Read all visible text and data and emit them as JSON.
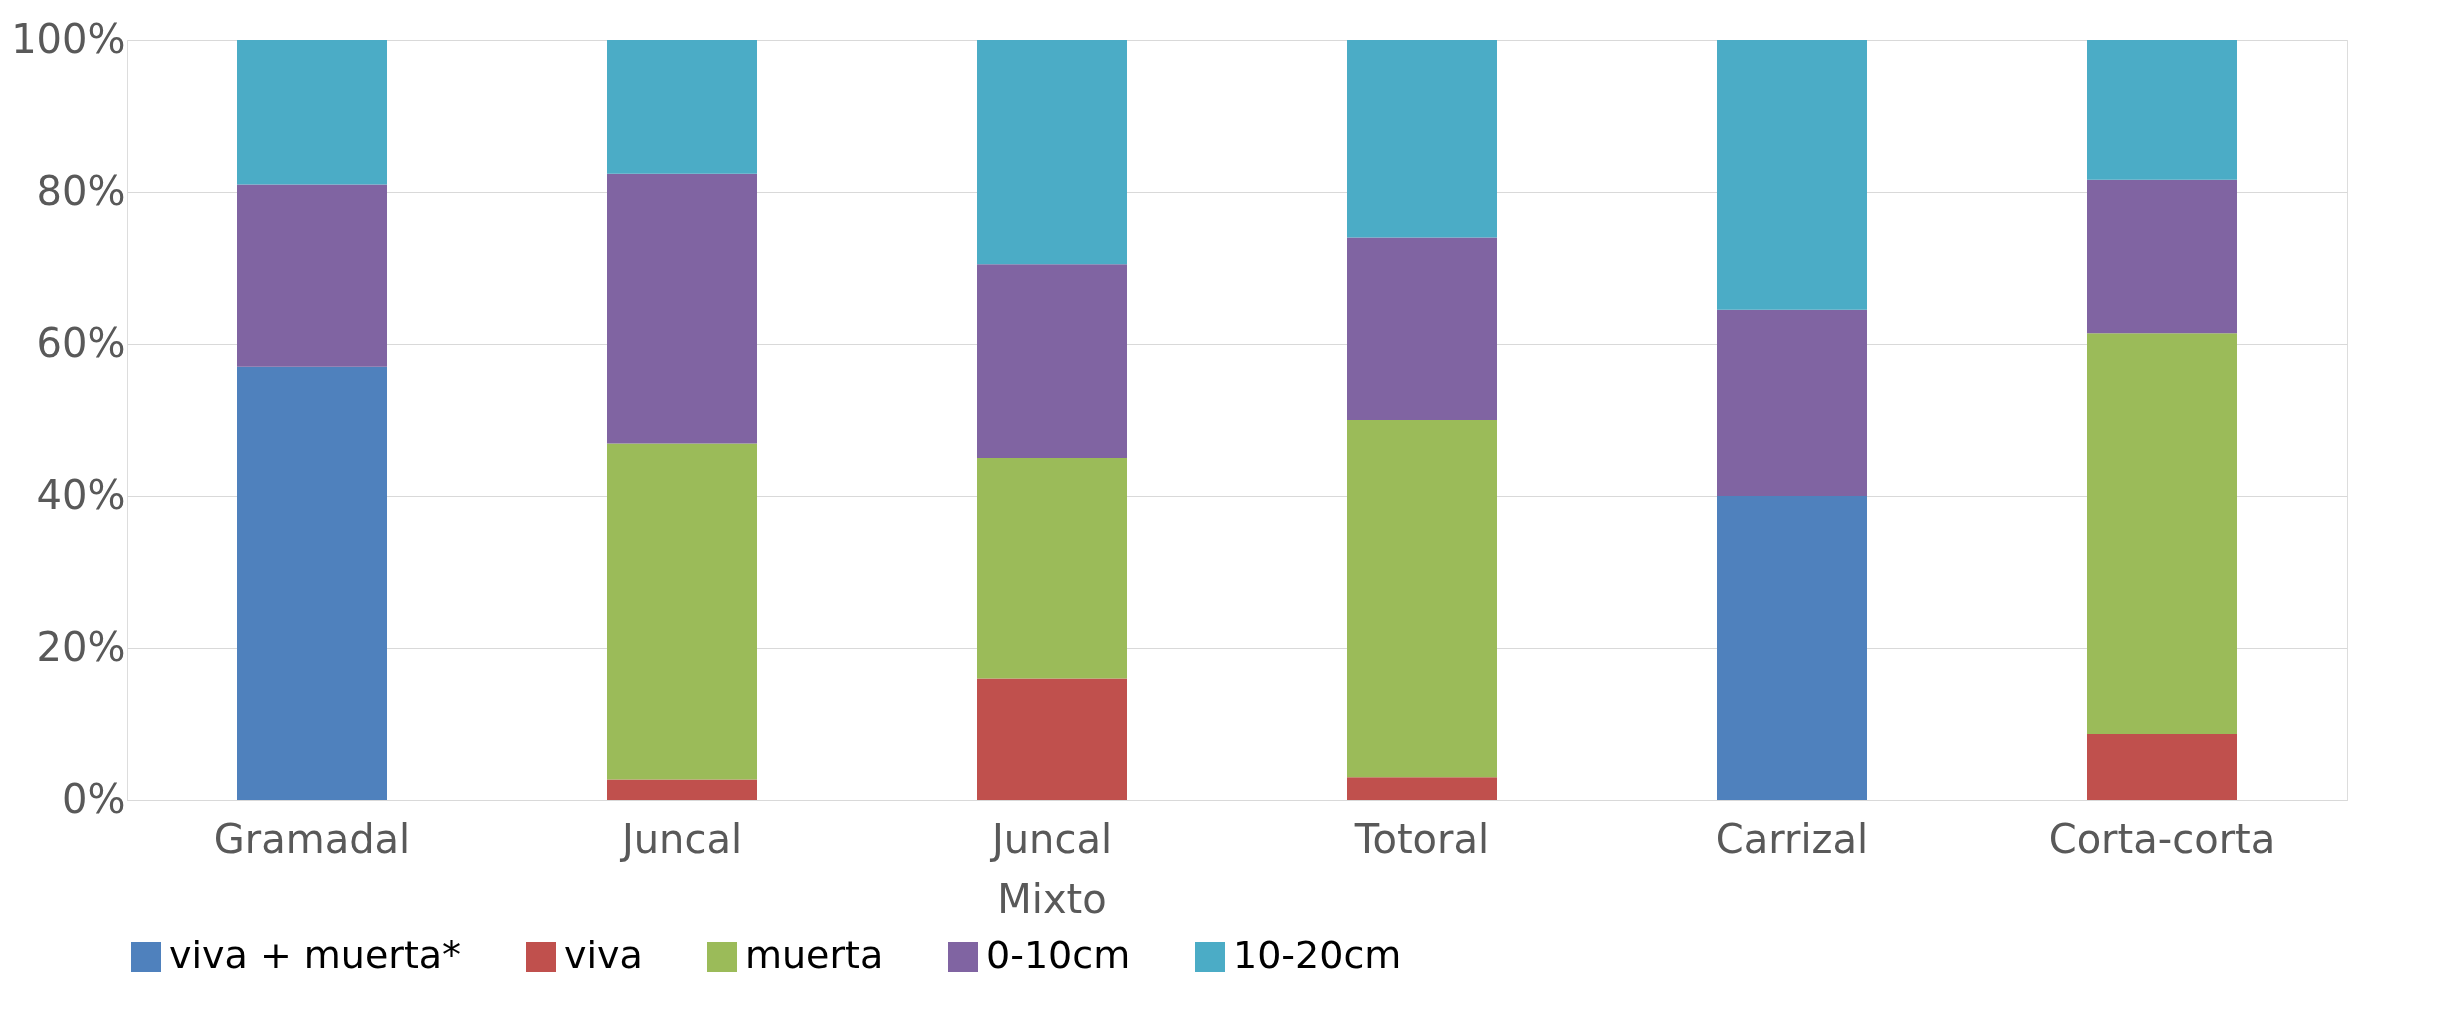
{
  "chart_data": {
    "type": "bar",
    "stacked": true,
    "categories": [
      "Gramadal",
      "Juncal",
      "Juncal Mixto",
      "Totoral",
      "Carrizal",
      "Corta-corta"
    ],
    "series": [
      {
        "name": "viva + muerta*",
        "color": "#4f81bd",
        "values": [
          57,
          null,
          null,
          null,
          40,
          null
        ]
      },
      {
        "name": "viva",
        "color": "#c0504d",
        "values": [
          null,
          2.7,
          16,
          3,
          null,
          8.7
        ]
      },
      {
        "name": "muerta",
        "color": "#9bbb59",
        "values": [
          null,
          44.2,
          29,
          47,
          null,
          52.7
        ]
      },
      {
        "name": "0-10cm",
        "color": "#8064a2",
        "values": [
          24,
          35.5,
          25.5,
          24,
          24.5,
          20.2
        ]
      },
      {
        "name": "10-20cm",
        "color": "#4bacc6",
        "values": [
          19,
          17.6,
          29.5,
          26,
          35.5,
          18.4
        ]
      }
    ],
    "ylim": [
      0,
      100
    ],
    "yticks": [
      {
        "value": 0,
        "label": "0%"
      },
      {
        "value": 20,
        "label": "20%"
      },
      {
        "value": 40,
        "label": "40%"
      },
      {
        "value": 60,
        "label": "60%"
      },
      {
        "value": 80,
        "label": "80%"
      },
      {
        "value": 100,
        "label": "100%"
      }
    ],
    "grid": "y",
    "legend": "bottom"
  }
}
